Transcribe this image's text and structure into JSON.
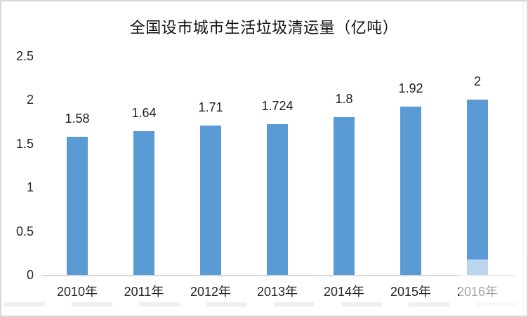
{
  "chart_data": {
    "type": "bar",
    "title": "全国设市城市生活垃圾清运量（亿吨）",
    "categories": [
      "2010年",
      "2011年",
      "2012年",
      "2013年",
      "2014年",
      "2015年",
      "2016年"
    ],
    "values": [
      1.58,
      1.64,
      1.71,
      1.724,
      1.8,
      1.92,
      2
    ],
    "value_labels": [
      "1.58",
      "1.64",
      "1.71",
      "1.724",
      "1.8",
      "1.92",
      "2"
    ],
    "y_ticks": [
      "0",
      "0.5",
      "1",
      "1.5",
      "2",
      "2.5"
    ],
    "y_tick_values": [
      0,
      0.5,
      1,
      1.5,
      2,
      2.5
    ],
    "ylim": [
      0,
      2.5
    ],
    "xlabel": "",
    "ylabel": "",
    "grid": false,
    "legend": "none",
    "bar_color": "#5b9bd5",
    "axis_line_color": "#d9d9d9",
    "text_color": "#262626",
    "frame_border_color": "#d8d8d8"
  }
}
